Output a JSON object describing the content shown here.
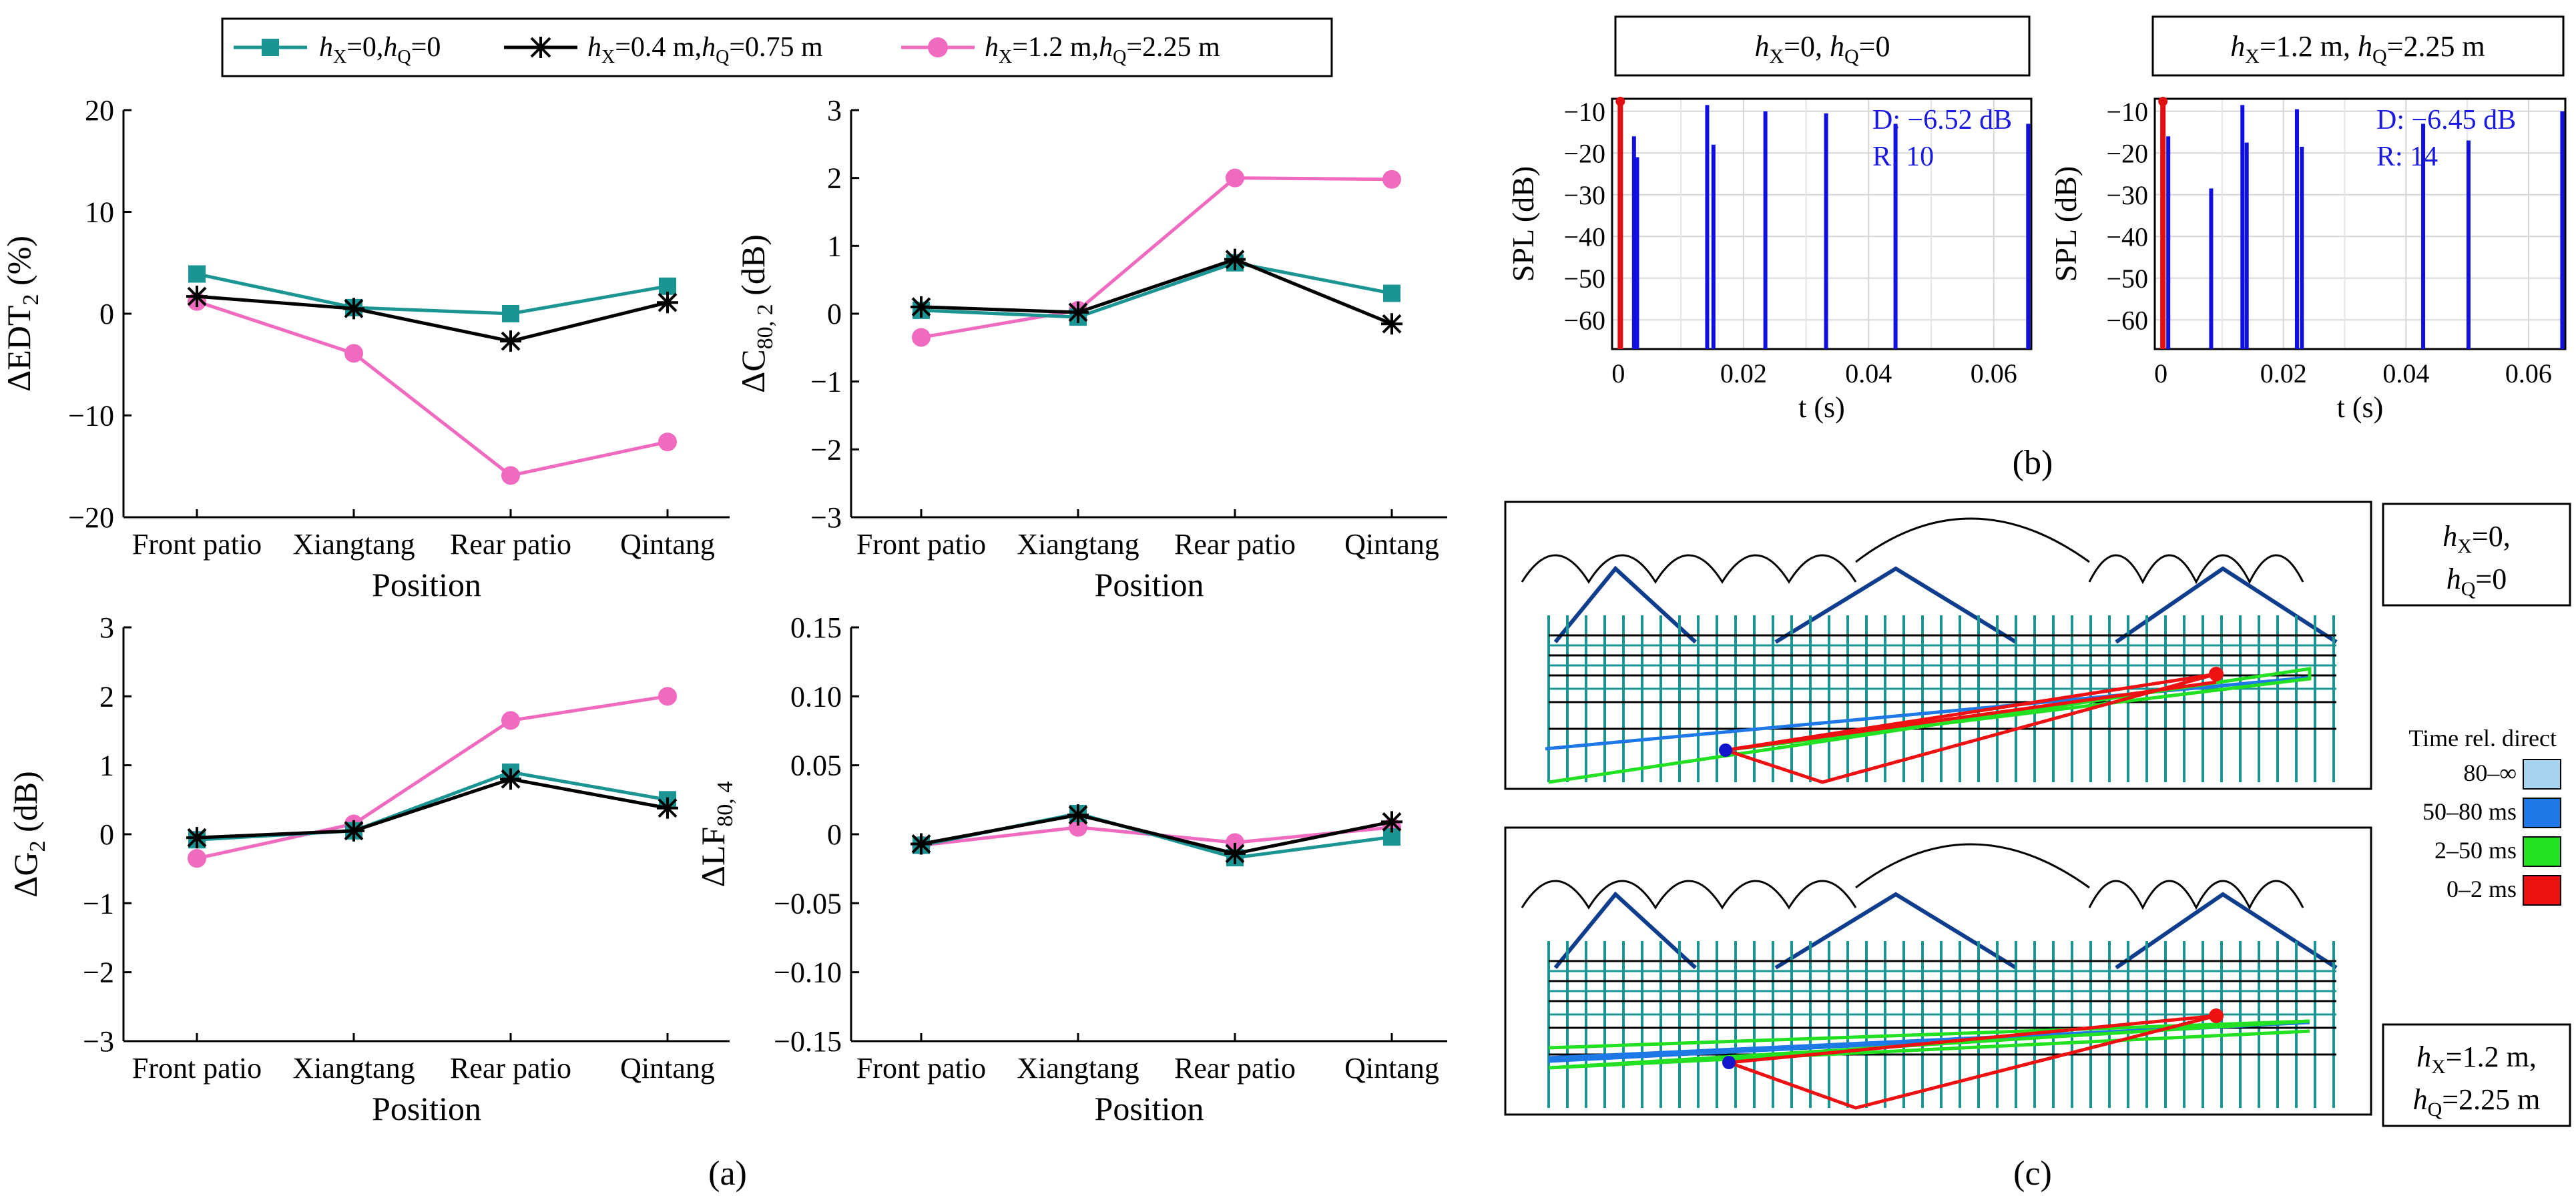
{
  "legend": {
    "entries": [
      {
        "hx": "0",
        "hq": "0",
        "color": "#1a9593",
        "marker": "square"
      },
      {
        "hx": "0.4 m",
        "hq": "0.75 m",
        "color": "#000000",
        "marker": "asterisk"
      },
      {
        "hx": "1.2 m",
        "hq": "2.25 m",
        "color": "#f06bbf",
        "marker": "circle"
      }
    ]
  },
  "panel_labels": {
    "a": "(a)",
    "b": "(b)",
    "c": "(c)"
  },
  "chart_data": [
    {
      "type": "line",
      "id": "edt",
      "categories": [
        "Front patio",
        "Xiangtang",
        "Rear patio",
        "Qintang"
      ],
      "xlabel": "Position",
      "ylabel_main": "ΔEDT",
      "ylabel_sub": "2",
      "ylabel_tail": " (%)",
      "ylim": [
        -20,
        20
      ],
      "yticks": [
        20,
        10,
        0,
        -10,
        -20
      ],
      "yticklabels": [
        "20",
        "10",
        "0",
        "−10",
        "−20"
      ],
      "series": [
        {
          "name": "hX=0, hQ=0",
          "values": [
            3.9,
            0.6,
            0.0,
            2.7
          ]
        },
        {
          "name": "hX=0.4 m, hQ=0.75 m",
          "values": [
            1.7,
            0.5,
            -2.7,
            1.1
          ]
        },
        {
          "name": "hX=1.2 m, hQ=2.25 m",
          "values": [
            1.2,
            -3.9,
            -15.9,
            -12.6
          ]
        }
      ]
    },
    {
      "type": "line",
      "id": "c80",
      "categories": [
        "Front patio",
        "Xiangtang",
        "Rear patio",
        "Qintang"
      ],
      "xlabel": "Position",
      "ylabel_main": "ΔC",
      "ylabel_sub": "80, 2",
      "ylabel_tail": " (dB)",
      "ylim": [
        -3,
        3
      ],
      "yticks": [
        3,
        2,
        1,
        0,
        -1,
        -2,
        -3
      ],
      "yticklabels": [
        "3",
        "2",
        "1",
        "0",
        "−1",
        "−2",
        "−3"
      ],
      "series": [
        {
          "name": "hX=0, hQ=0",
          "values": [
            0.05,
            -0.05,
            0.75,
            0.3
          ]
        },
        {
          "name": "hX=0.4 m, hQ=0.75 m",
          "values": [
            0.1,
            0.02,
            0.8,
            -0.15
          ]
        },
        {
          "name": "hX=1.2 m, hQ=2.25 m",
          "values": [
            -0.35,
            0.05,
            2.0,
            1.98
          ]
        }
      ]
    },
    {
      "type": "line",
      "id": "g",
      "categories": [
        "Front patio",
        "Xiangtang",
        "Rear patio",
        "Qintang"
      ],
      "xlabel": "Position",
      "ylabel_main": "ΔG",
      "ylabel_sub": "2",
      "ylabel_tail": " (dB)",
      "ylim": [
        -3,
        3
      ],
      "yticks": [
        3,
        2,
        1,
        0,
        -1,
        -2,
        -3
      ],
      "yticklabels": [
        "3",
        "2",
        "1",
        "0",
        "−1",
        "−2",
        "−3"
      ],
      "series": [
        {
          "name": "hX=0, hQ=0",
          "values": [
            -0.08,
            0.05,
            0.9,
            0.5
          ]
        },
        {
          "name": "hX=0.4 m, hQ=0.75 m",
          "values": [
            -0.05,
            0.05,
            0.8,
            0.38
          ]
        },
        {
          "name": "hX=1.2 m, hQ=2.25 m",
          "values": [
            -0.35,
            0.15,
            1.65,
            2.0
          ]
        }
      ]
    },
    {
      "type": "line",
      "id": "lf",
      "categories": [
        "Front patio",
        "Xiangtang",
        "Rear patio",
        "Qintang"
      ],
      "xlabel": "Position",
      "ylabel_main": "ΔLF",
      "ylabel_sub": "80, 4",
      "ylabel_tail": "",
      "ylim": [
        -0.15,
        0.15
      ],
      "yticks": [
        0.15,
        0.1,
        0.05,
        0,
        -0.05,
        -0.1,
        -0.15
      ],
      "yticklabels": [
        "0.15",
        "0.10",
        "0.05",
        "0",
        "−0.05",
        "−0.10",
        "−0.15"
      ],
      "series": [
        {
          "name": "hX=0, hQ=0",
          "values": [
            -0.008,
            0.015,
            -0.017,
            -0.002
          ]
        },
        {
          "name": "hX=0.4 m, hQ=0.75 m",
          "values": [
            -0.007,
            0.014,
            -0.014,
            0.009
          ]
        },
        {
          "name": "hX=1.2 m, hQ=2.25 m",
          "values": [
            -0.008,
            0.005,
            -0.006,
            0.005
          ]
        }
      ]
    },
    {
      "type": "bar",
      "id": "ir1",
      "title": "hX=0, hQ=0",
      "title_parts": {
        "hx": "0",
        "hq": "0"
      },
      "xlabel": "t (s)",
      "ylabel": "SPL (dB)",
      "xlim": [
        -0.001,
        0.066
      ],
      "ylim": [
        -67,
        -7
      ],
      "xticks": [
        0,
        0.02,
        0.04,
        0.06
      ],
      "xticklabels": [
        "0",
        "0.02",
        "0.04",
        "0.06"
      ],
      "yticks": [
        -10,
        -20,
        -30,
        -40,
        -50,
        -60
      ],
      "yticklabels": [
        "−10",
        "−20",
        "−30",
        "−40",
        "−50",
        "−60"
      ],
      "annotation_d": "D: −6.52 dB",
      "annotation_r": "R: 10",
      "direct": {
        "t": 0.0,
        "spl": -7.5
      },
      "reflections": [
        {
          "t": 0.0025,
          "spl": -16
        },
        {
          "t": 0.003,
          "spl": -21
        },
        {
          "t": 0.0142,
          "spl": -8.5
        },
        {
          "t": 0.0152,
          "spl": -18
        },
        {
          "t": 0.0235,
          "spl": -10
        },
        {
          "t": 0.0332,
          "spl": -10.5
        },
        {
          "t": 0.0443,
          "spl": -13
        },
        {
          "t": 0.0655,
          "spl": -13
        }
      ]
    },
    {
      "type": "bar",
      "id": "ir2",
      "title": "hX=1.2 m, hQ=2.25 m",
      "title_parts": {
        "hx": "1.2 m",
        "hq": "2.25 m"
      },
      "xlabel": "t (s)",
      "ylabel": "SPL (dB)",
      "xlim": [
        -0.001,
        0.066
      ],
      "ylim": [
        -67,
        -7
      ],
      "xticks": [
        0,
        0.02,
        0.04,
        0.06
      ],
      "xticklabels": [
        "0",
        "0.02",
        "0.04",
        "0.06"
      ],
      "yticks": [
        -10,
        -20,
        -30,
        -40,
        -50,
        -60
      ],
      "yticklabels": [
        "−10",
        "−20",
        "−30",
        "−40",
        "−50",
        "−60"
      ],
      "annotation_d": "D: −6.45 dB",
      "annotation_r": "R: 14",
      "direct": {
        "t": 0.0,
        "spl": -7.5
      },
      "reflections": [
        {
          "t": 0.0012,
          "spl": -16
        },
        {
          "t": 0.0082,
          "spl": -28.5
        },
        {
          "t": 0.0133,
          "spl": -8.5
        },
        {
          "t": 0.014,
          "spl": -17.5
        },
        {
          "t": 0.0222,
          "spl": -9.5
        },
        {
          "t": 0.023,
          "spl": -18.5
        },
        {
          "t": 0.0428,
          "spl": -13
        },
        {
          "t": 0.0502,
          "spl": -17
        },
        {
          "t": 0.0655,
          "spl": -10
        }
      ]
    }
  ],
  "raytrace": {
    "panel_top_label": {
      "hx": "0",
      "hq": "0"
    },
    "panel_bottom_label": {
      "hx": "1.2 m",
      "hq": "2.25 m"
    },
    "legend_title": "Time rel. direct",
    "legend_items": [
      {
        "label": "80–∞",
        "color": "#a8d4f2"
      },
      {
        "label": "50–80 ms",
        "color": "#1e78e6"
      },
      {
        "label": "2–50 ms",
        "color": "#22e022"
      },
      {
        "label": "0–2 ms",
        "color": "#ee1111"
      }
    ]
  }
}
